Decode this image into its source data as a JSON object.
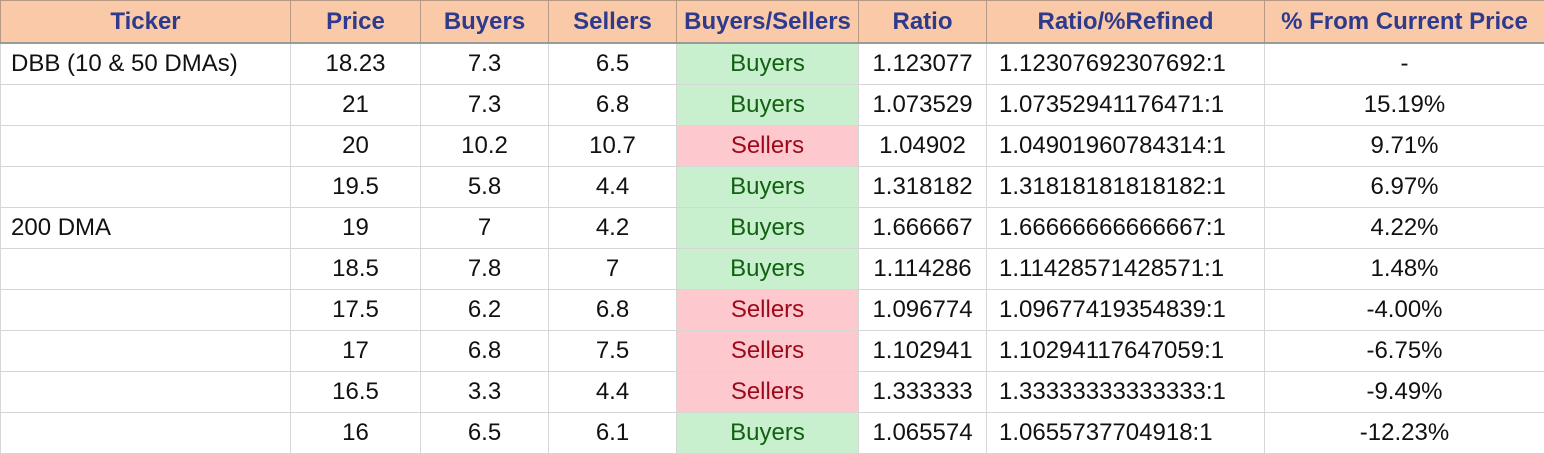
{
  "headers": [
    "Ticker",
    "Price",
    "Buyers",
    "Sellers",
    "Buyers/Sellers",
    "Ratio",
    "Ratio/%Refined",
    "% From Current Price"
  ],
  "rows": [
    {
      "ticker": "DBB (10 & 50 DMAs)",
      "price": "18.23",
      "buyers": "7.3",
      "sellers": "6.5",
      "bs": "Buyers",
      "ratio": "1.123077",
      "refined": "1.12307692307692:1",
      "pct": "-"
    },
    {
      "ticker": "",
      "price": "21",
      "buyers": "7.3",
      "sellers": "6.8",
      "bs": "Buyers",
      "ratio": "1.073529",
      "refined": "1.07352941176471:1",
      "pct": "15.19%"
    },
    {
      "ticker": "",
      "price": "20",
      "buyers": "10.2",
      "sellers": "10.7",
      "bs": "Sellers",
      "ratio": "1.04902",
      "refined": "1.04901960784314:1",
      "pct": "9.71%"
    },
    {
      "ticker": "",
      "price": "19.5",
      "buyers": "5.8",
      "sellers": "4.4",
      "bs": "Buyers",
      "ratio": "1.318182",
      "refined": "1.31818181818182:1",
      "pct": "6.97%"
    },
    {
      "ticker": "200 DMA",
      "price": "19",
      "buyers": "7",
      "sellers": "4.2",
      "bs": "Buyers",
      "ratio": "1.666667",
      "refined": "1.66666666666667:1",
      "pct": "4.22%"
    },
    {
      "ticker": "",
      "price": "18.5",
      "buyers": "7.8",
      "sellers": "7",
      "bs": "Buyers",
      "ratio": "1.114286",
      "refined": "1.11428571428571:1",
      "pct": "1.48%"
    },
    {
      "ticker": "",
      "price": "17.5",
      "buyers": "6.2",
      "sellers": "6.8",
      "bs": "Sellers",
      "ratio": "1.096774",
      "refined": "1.09677419354839:1",
      "pct": "-4.00%"
    },
    {
      "ticker": "",
      "price": "17",
      "buyers": "6.8",
      "sellers": "7.5",
      "bs": "Sellers",
      "ratio": "1.102941",
      "refined": "1.10294117647059:1",
      "pct": "-6.75%"
    },
    {
      "ticker": "",
      "price": "16.5",
      "buyers": "3.3",
      "sellers": "4.4",
      "bs": "Sellers",
      "ratio": "1.333333",
      "refined": "1.33333333333333:1",
      "pct": "-9.49%"
    },
    {
      "ticker": "",
      "price": "16",
      "buyers": "6.5",
      "sellers": "6.1",
      "bs": "Buyers",
      "ratio": "1.065574",
      "refined": "1.0655737704918:1",
      "pct": "-12.23%"
    }
  ],
  "colors": {
    "header_bg": "#f9c9a8",
    "header_text": "#2e3a8c",
    "buyers_bg": "#c8efce",
    "buyers_text": "#116111",
    "sellers_bg": "#fec8cf",
    "sellers_text": "#9c0a1a"
  }
}
